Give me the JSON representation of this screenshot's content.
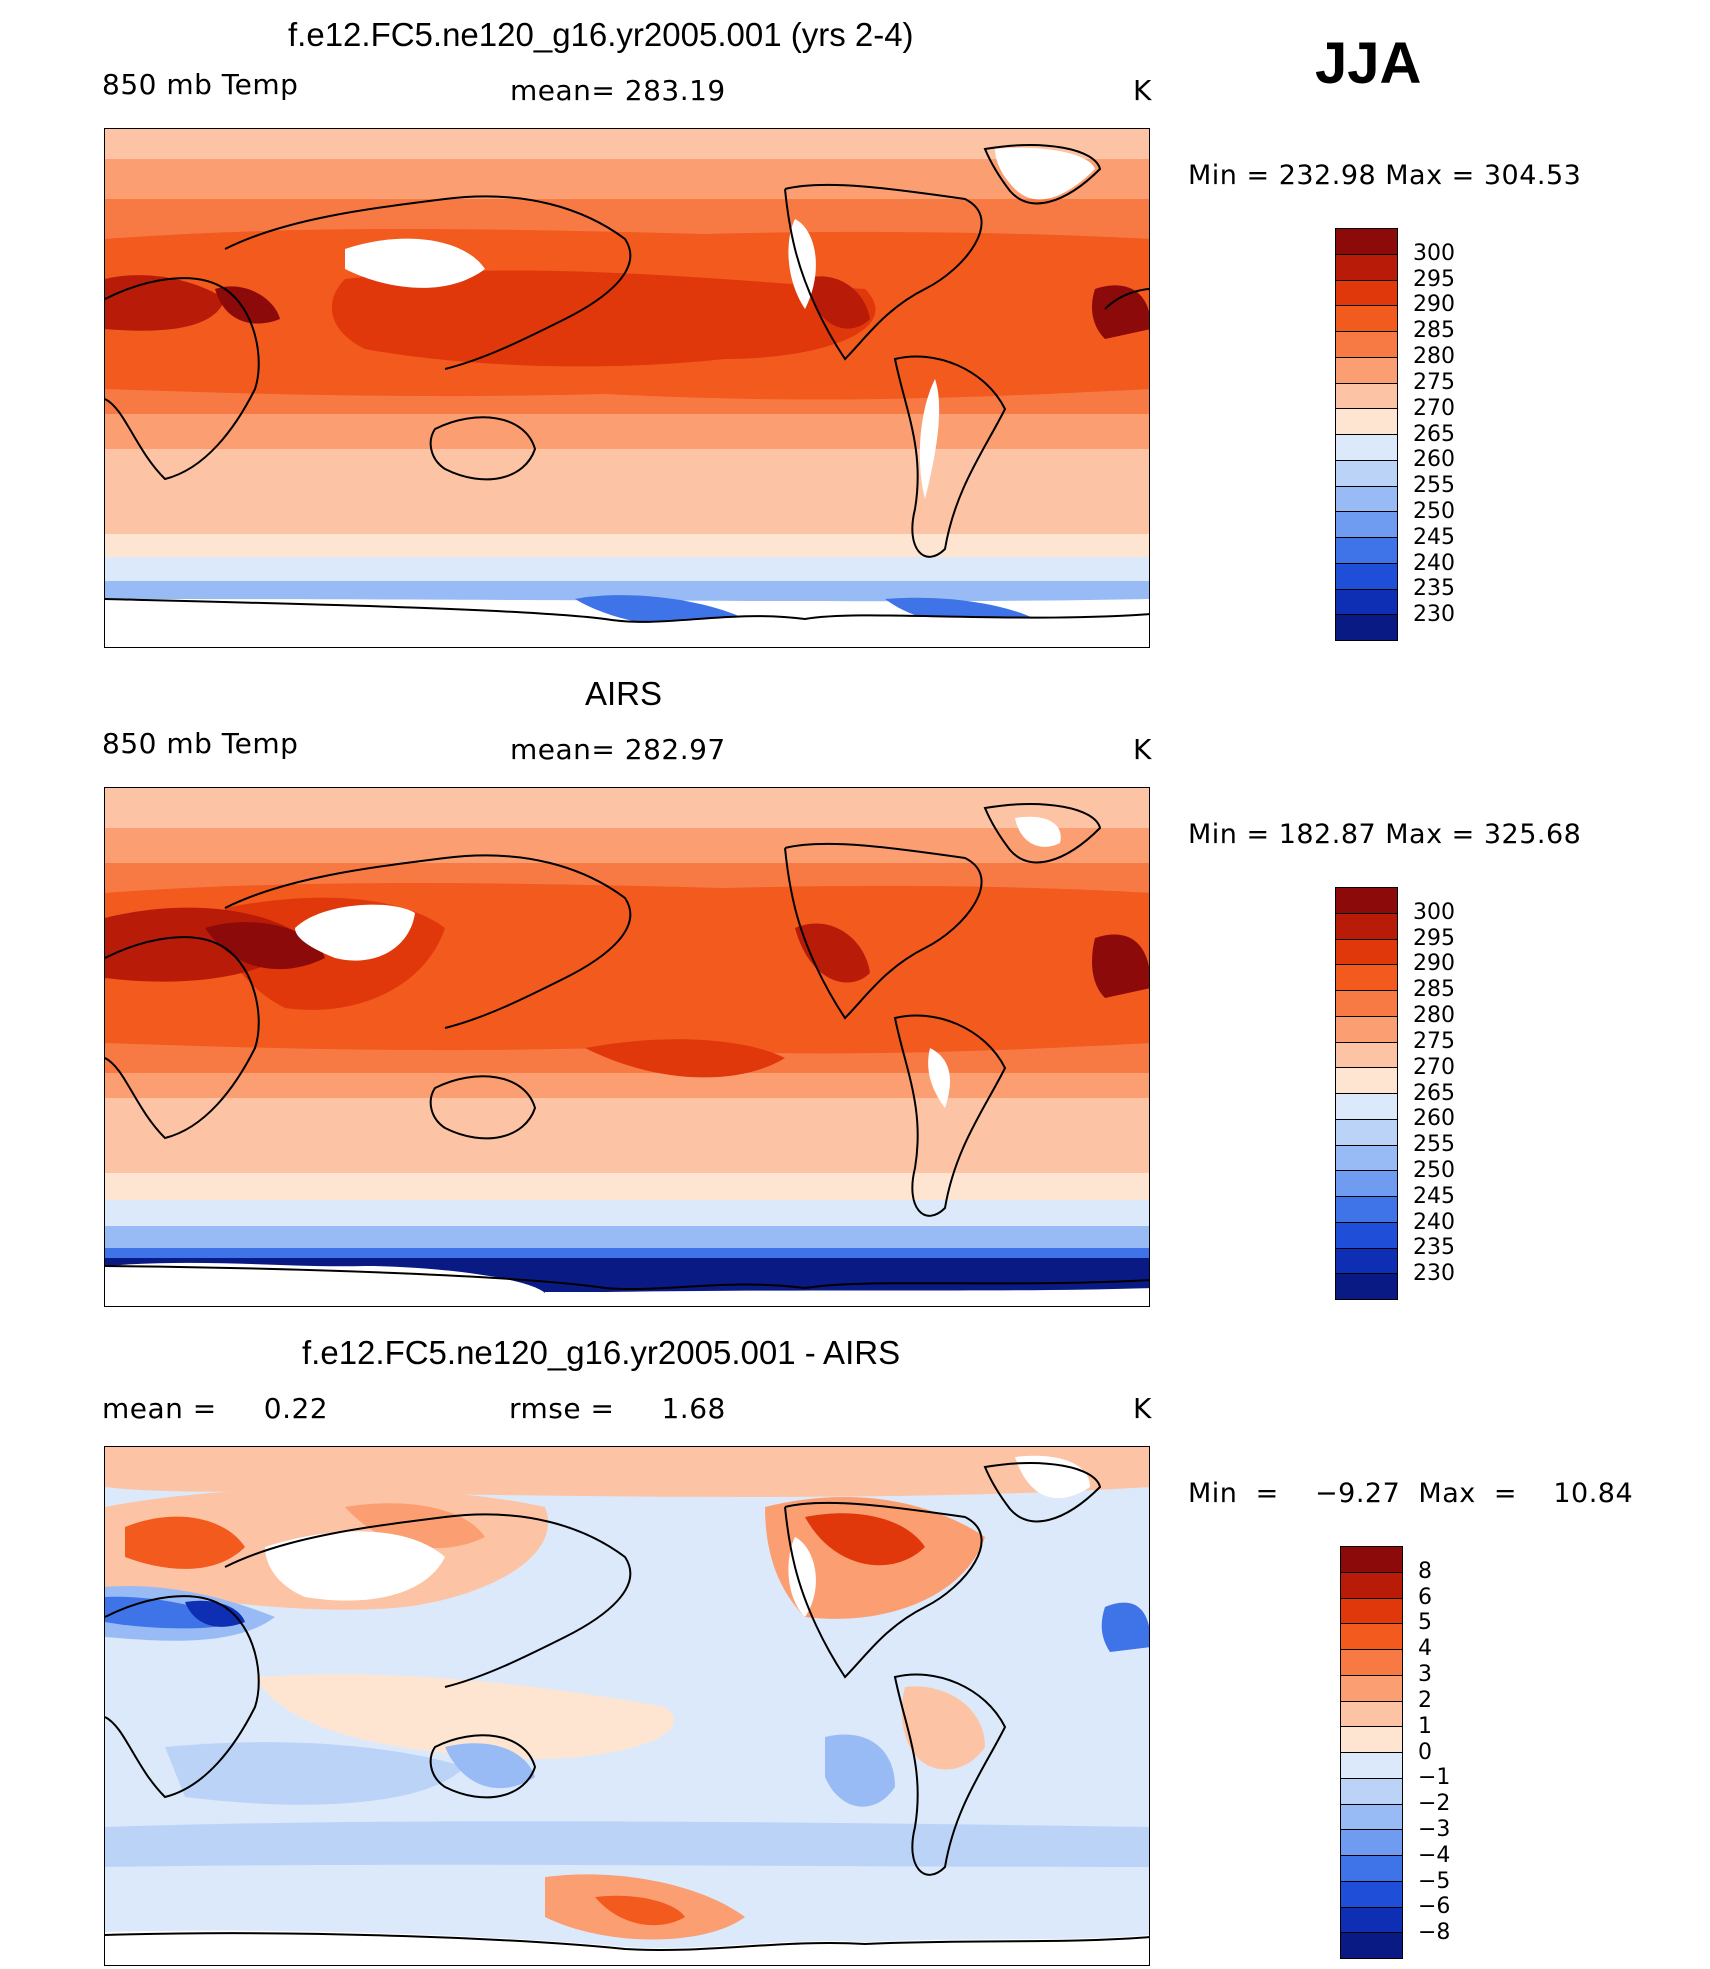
{
  "season": "JJA",
  "panels": [
    {
      "id": "model",
      "title": "f.e12.FC5.ne120_g16.yr2005.001 (yrs 2-4)",
      "left_label": "850 mb Temp",
      "center_label": "mean= 283.19",
      "unit": "K",
      "range_label": "Min  =  232.98  Max  =  304.53",
      "colorbar": {
        "colors": [
          "#8c0a0a",
          "#b81c08",
          "#e0380a",
          "#f25a1e",
          "#f77a45",
          "#fb9f72",
          "#fdc3a5",
          "#fee5d2",
          "#dce9fb",
          "#bcd3f8",
          "#99bbf5",
          "#6f9bf0",
          "#3f73e8",
          "#1f4fd8",
          "#0e2fb4",
          "#0a1a85"
        ],
        "labels": [
          "300",
          "295",
          "290",
          "285",
          "280",
          "275",
          "270",
          "265",
          "260",
          "255",
          "250",
          "245",
          "240",
          "235",
          "230"
        ]
      },
      "map_colors": {
        "polar_s": "#ffffff",
        "c230": "#0a1a85",
        "c240": "#3f73e8",
        "c250": "#99bbf5",
        "c260": "#dce9fb",
        "c270": "#fee5d2",
        "c275": "#fdc3a5",
        "c280": "#fb9f72",
        "c285": "#f77a45",
        "c290": "#f25a1e",
        "c295": "#e0380a",
        "c300": "#b81c08",
        "c305": "#8c0a0a",
        "missing": "#ffffff",
        "coast": "#000000"
      }
    },
    {
      "id": "obs",
      "title": "AIRS",
      "left_label": "850 mb Temp",
      "center_label": "mean= 282.97",
      "unit": "K",
      "range_label": "Min  =  182.87  Max  =  325.68",
      "colorbar": {
        "colors": [
          "#8c0a0a",
          "#b81c08",
          "#e0380a",
          "#f25a1e",
          "#f77a45",
          "#fb9f72",
          "#fdc3a5",
          "#fee5d2",
          "#dce9fb",
          "#bcd3f8",
          "#99bbf5",
          "#6f9bf0",
          "#3f73e8",
          "#1f4fd8",
          "#0e2fb4",
          "#0a1a85"
        ],
        "labels": [
          "300",
          "295",
          "290",
          "285",
          "280",
          "275",
          "270",
          "265",
          "260",
          "255",
          "250",
          "245",
          "240",
          "235",
          "230"
        ]
      },
      "map_colors": {
        "polar_s": "#ffffff",
        "c230": "#0a1a85",
        "c240": "#3f73e8",
        "c250": "#99bbf5",
        "c260": "#dce9fb",
        "c270": "#fee5d2",
        "c275": "#fdc3a5",
        "c280": "#fb9f72",
        "c285": "#f77a45",
        "c290": "#f25a1e",
        "c295": "#e0380a",
        "c300": "#b81c08",
        "c305": "#8c0a0a",
        "missing": "#ffffff",
        "coast": "#000000"
      }
    },
    {
      "id": "diff",
      "title": "f.e12.FC5.ne120_g16.yr2005.001 - AIRS",
      "left_label": "mean =     0.22",
      "center_label": "rmse =     1.68",
      "unit": "K",
      "range_label": "Min  =    −9.27  Max  =    10.84",
      "colorbar": {
        "colors": [
          "#8c0a0a",
          "#b81c08",
          "#e0380a",
          "#f25a1e",
          "#f77a45",
          "#fb9f72",
          "#fdc3a5",
          "#fee5d2",
          "#dce9fb",
          "#bcd3f8",
          "#99bbf5",
          "#6f9bf0",
          "#3f73e8",
          "#1f4fd8",
          "#0e2fb4",
          "#0a1a85"
        ],
        "labels": [
          "8",
          "6",
          "5",
          "4",
          "3",
          "2",
          "1",
          "0",
          "−1",
          "−2",
          "−3",
          "−4",
          "−5",
          "−6",
          "−8"
        ]
      },
      "map_colors": {
        "base": "#dce9fb",
        "warm1": "#fee5d2",
        "warm2": "#fdc3a5",
        "warm3": "#fb9f72",
        "warm4": "#f25a1e",
        "warm5": "#e0380a",
        "cool1": "#bcd3f8",
        "cool2": "#99bbf5",
        "cool3": "#3f73e8",
        "cool4": "#0e2fb4",
        "missing": "#ffffff",
        "coast": "#000000"
      }
    }
  ]
}
